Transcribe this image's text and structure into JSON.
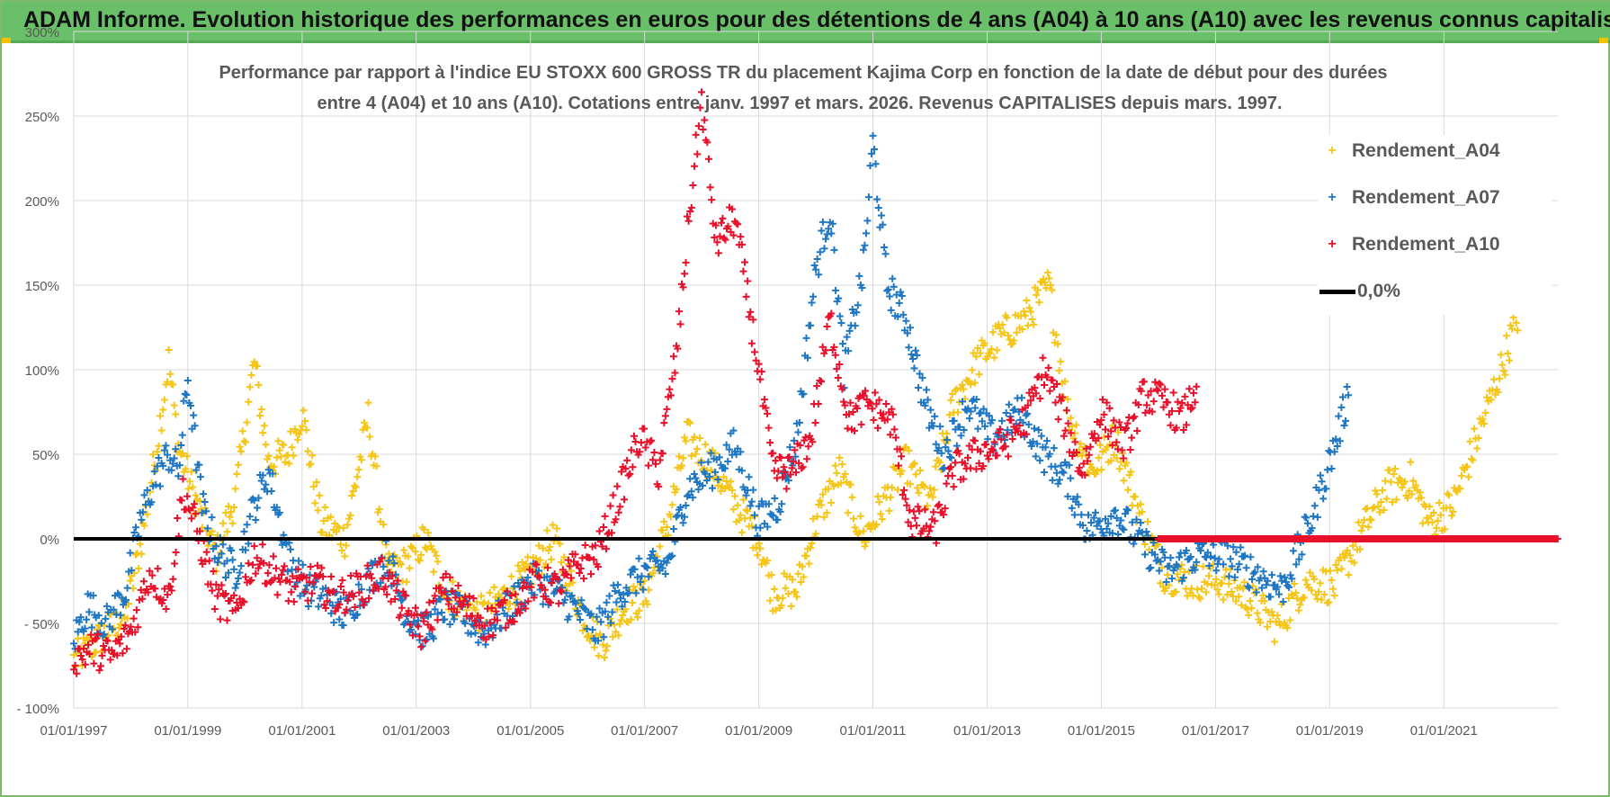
{
  "banner": {
    "title": "ADAM Informe. Evolution historique des performances en euros pour des détentions de 4 ans (A04) à 10 ans (A10) avec les revenus connus capitalisés"
  },
  "colors": {
    "banner": "#6abf69",
    "A04": "#f5c518",
    "A07": "#1f77c4",
    "A10": "#e8102a",
    "zero": "#000000",
    "grid": "#d9d9d9"
  },
  "chart_data": {
    "type": "scatter",
    "title_line1": "Performance par rapport à l'indice EU STOXX 600 GROSS TR  du placement Kajima Corp en fonction de la date de début pour des durées",
    "title_line2": "entre 4 (A04) et 10 ans (A10).  Cotations entre janv. 1997 et mars. 2026.  Revenus CAPITALISES depuis mars. 1997.",
    "xlabel": "",
    "ylabel": "",
    "x_range": [
      "1997-01-01",
      "2022-12-31"
    ],
    "ylim": [
      -100,
      300
    ],
    "y_ticks": [
      -100,
      -50,
      0,
      50,
      100,
      150,
      200,
      250,
      300
    ],
    "y_tick_labels": [
      "- 100%",
      "- 50%",
      "0%",
      "50%",
      "100%",
      "150%",
      "200%",
      "250%",
      "300%"
    ],
    "x_ticks": [
      "1997-01-01",
      "1999-01-01",
      "2001-01-01",
      "2003-01-01",
      "2005-01-01",
      "2007-01-01",
      "2009-01-01",
      "2011-01-01",
      "2013-01-01",
      "2015-01-01",
      "2017-01-01",
      "2019-01-01",
      "2021-01-01"
    ],
    "x_tick_labels": [
      "01/01/1997",
      "01/01/1999",
      "01/01/2001",
      "01/01/2003",
      "01/01/2005",
      "01/01/2007",
      "01/01/2009",
      "01/01/2011",
      "01/01/2013",
      "01/01/2015",
      "01/01/2017",
      "01/01/2019",
      "01/01/2021"
    ],
    "grid": true,
    "legend_position": "top-right",
    "series": [
      {
        "name": "Rendement_A04",
        "color": "#f5c518",
        "marker": "+",
        "points": [
          [
            "1997-01-01",
            -72
          ],
          [
            "1997-04-01",
            -65
          ],
          [
            "1997-08-01",
            -55
          ],
          [
            "1997-12-01",
            -45
          ],
          [
            "1998-03-01",
            -5
          ],
          [
            "1998-06-01",
            45
          ],
          [
            "1998-09-01",
            105
          ],
          [
            "1998-11-01",
            55
          ],
          [
            "1999-03-01",
            20
          ],
          [
            "1999-07-01",
            -10
          ],
          [
            "1999-11-01",
            25
          ],
          [
            "2000-03-01",
            105
          ],
          [
            "2000-06-01",
            45
          ],
          [
            "2000-10-01",
            50
          ],
          [
            "2001-01-01",
            75
          ],
          [
            "2001-05-01",
            10
          ],
          [
            "2001-10-01",
            0
          ],
          [
            "2002-03-01",
            72
          ],
          [
            "2002-07-01",
            -20
          ],
          [
            "2002-11-01",
            -15
          ],
          [
            "2003-03-01",
            0
          ],
          [
            "2003-07-01",
            -30
          ],
          [
            "2003-11-01",
            -40
          ],
          [
            "2004-03-01",
            -45
          ],
          [
            "2004-09-01",
            -30
          ],
          [
            "2005-01-01",
            -20
          ],
          [
            "2005-06-01",
            0
          ],
          [
            "2005-12-01",
            -45
          ],
          [
            "2006-04-01",
            -62
          ],
          [
            "2006-09-01",
            -40
          ],
          [
            "2007-01-01",
            -35
          ],
          [
            "2007-06-01",
            10
          ],
          [
            "2007-10-01",
            60
          ],
          [
            "2008-03-01",
            45
          ],
          [
            "2008-08-01",
            20
          ],
          [
            "2009-01-01",
            0
          ],
          [
            "2009-04-01",
            -32
          ],
          [
            "2009-09-01",
            -30
          ],
          [
            "2010-01-01",
            10
          ],
          [
            "2010-06-01",
            40
          ],
          [
            "2010-11-01",
            0
          ],
          [
            "2011-03-01",
            20
          ],
          [
            "2011-08-01",
            45
          ],
          [
            "2012-01-01",
            20
          ],
          [
            "2012-06-01",
            80
          ],
          [
            "2012-11-01",
            105
          ],
          [
            "2013-04-01",
            120
          ],
          [
            "2013-09-01",
            130
          ],
          [
            "2014-02-01",
            150
          ],
          [
            "2014-06-01",
            75
          ],
          [
            "2014-11-01",
            40
          ],
          [
            "2015-04-01",
            60
          ],
          [
            "2015-09-01",
            15
          ],
          [
            "2016-02-01",
            -20
          ],
          [
            "2016-08-01",
            -25
          ],
          [
            "2017-02-01",
            -25
          ],
          [
            "2017-08-01",
            -35
          ],
          [
            "2018-02-01",
            -52
          ],
          [
            "2018-08-01",
            -25
          ],
          [
            "2019-02-01",
            -28
          ],
          [
            "2019-08-01",
            5
          ],
          [
            "2020-01-01",
            30
          ],
          [
            "2020-06-01",
            35
          ],
          [
            "2020-10-01",
            10
          ],
          [
            "2021-03-01",
            20
          ],
          [
            "2021-08-01",
            60
          ],
          [
            "2022-01-01",
            100
          ],
          [
            "2022-06-01",
            145
          ]
        ]
      },
      {
        "name": "Rendement_A07",
        "color": "#1f77c4",
        "marker": "+",
        "points": [
          [
            "1997-01-01",
            -60
          ],
          [
            "1997-04-01",
            -40
          ],
          [
            "1997-08-01",
            -50
          ],
          [
            "1997-12-01",
            -30
          ],
          [
            "1998-03-01",
            10
          ],
          [
            "1998-06-01",
            35
          ],
          [
            "1998-09-01",
            50
          ],
          [
            "1998-11-01",
            40
          ],
          [
            "1999-01-01",
            95
          ],
          [
            "1999-04-01",
            20
          ],
          [
            "1999-07-01",
            -5
          ],
          [
            "1999-11-01",
            -20
          ],
          [
            "2000-03-01",
            20
          ],
          [
            "2000-06-01",
            40
          ],
          [
            "2000-10-01",
            -10
          ],
          [
            "2001-02-01",
            -30
          ],
          [
            "2001-06-01",
            -35
          ],
          [
            "2001-10-01",
            -45
          ],
          [
            "2002-03-01",
            -25
          ],
          [
            "2002-07-01",
            -10
          ],
          [
            "2002-11-01",
            -45
          ],
          [
            "2003-03-01",
            -55
          ],
          [
            "2003-07-01",
            -40
          ],
          [
            "2003-11-01",
            -45
          ],
          [
            "2004-03-01",
            -55
          ],
          [
            "2004-09-01",
            -40
          ],
          [
            "2005-01-01",
            -25
          ],
          [
            "2005-06-01",
            -30
          ],
          [
            "2005-10-01",
            -40
          ],
          [
            "2006-03-01",
            -55
          ],
          [
            "2006-08-01",
            -30
          ],
          [
            "2007-01-01",
            -20
          ],
          [
            "2007-06-01",
            -15
          ],
          [
            "2007-10-01",
            30
          ],
          [
            "2008-03-01",
            40
          ],
          [
            "2008-08-01",
            55
          ],
          [
            "2009-01-01",
            10
          ],
          [
            "2009-05-01",
            20
          ],
          [
            "2009-09-01",
            60
          ],
          [
            "2010-01-01",
            160
          ],
          [
            "2010-04-01",
            195
          ],
          [
            "2010-07-01",
            100
          ],
          [
            "2010-11-01",
            160
          ],
          [
            "2011-01-01",
            235
          ],
          [
            "2011-04-01",
            150
          ],
          [
            "2011-08-01",
            130
          ],
          [
            "2011-12-01",
            80
          ],
          [
            "2012-04-01",
            50
          ],
          [
            "2012-09-01",
            80
          ],
          [
            "2013-02-01",
            60
          ],
          [
            "2013-08-01",
            75
          ],
          [
            "2014-01-01",
            50
          ],
          [
            "2014-06-01",
            35
          ],
          [
            "2014-10-01",
            5
          ],
          [
            "2015-04-01",
            15
          ],
          [
            "2015-09-01",
            0
          ],
          [
            "2016-03-01",
            -20
          ],
          [
            "2016-09-01",
            -10
          ],
          [
            "2017-03-01",
            -10
          ],
          [
            "2017-09-01",
            -20
          ],
          [
            "2018-03-01",
            -30
          ],
          [
            "2018-09-01",
            10
          ],
          [
            "2019-02-01",
            55
          ],
          [
            "2019-05-01",
            85
          ]
        ]
      },
      {
        "name": "Rendement_A10",
        "color": "#e8102a",
        "marker": "+",
        "points": [
          [
            "1997-01-01",
            -70
          ],
          [
            "1997-05-01",
            -65
          ],
          [
            "1997-09-01",
            -70
          ],
          [
            "1998-01-01",
            -55
          ],
          [
            "1998-05-01",
            -20
          ],
          [
            "1998-09-01",
            -35
          ],
          [
            "1998-12-01",
            30
          ],
          [
            "1999-03-01",
            5
          ],
          [
            "1999-07-01",
            -35
          ],
          [
            "1999-11-01",
            -45
          ],
          [
            "2000-03-01",
            -10
          ],
          [
            "2000-07-01",
            -20
          ],
          [
            "2000-11-01",
            -30
          ],
          [
            "2001-04-01",
            -25
          ],
          [
            "2001-08-01",
            -35
          ],
          [
            "2002-01-01",
            -30
          ],
          [
            "2002-06-01",
            -20
          ],
          [
            "2002-10-01",
            -40
          ],
          [
            "2003-02-01",
            -55
          ],
          [
            "2003-07-01",
            -30
          ],
          [
            "2003-11-01",
            -40
          ],
          [
            "2004-04-01",
            -50
          ],
          [
            "2004-09-01",
            -40
          ],
          [
            "2005-02-01",
            -25
          ],
          [
            "2005-07-01",
            -30
          ],
          [
            "2005-11-01",
            -15
          ],
          [
            "2006-03-01",
            -10
          ],
          [
            "2006-07-01",
            20
          ],
          [
            "2006-12-01",
            60
          ],
          [
            "2007-04-01",
            40
          ],
          [
            "2007-08-01",
            115
          ],
          [
            "2007-10-01",
            180
          ],
          [
            "2008-01-01",
            260
          ],
          [
            "2008-04-01",
            175
          ],
          [
            "2008-08-01",
            190
          ],
          [
            "2009-01-01",
            100
          ],
          [
            "2009-04-01",
            40
          ],
          [
            "2009-08-01",
            40
          ],
          [
            "2009-12-01",
            60
          ],
          [
            "2010-04-01",
            130
          ],
          [
            "2010-08-01",
            70
          ],
          [
            "2010-12-01",
            80
          ],
          [
            "2011-05-01",
            70
          ],
          [
            "2011-09-01",
            10
          ],
          [
            "2012-02-01",
            5
          ],
          [
            "2012-06-01",
            40
          ],
          [
            "2012-11-01",
            50
          ],
          [
            "2013-04-01",
            55
          ],
          [
            "2013-09-01",
            70
          ],
          [
            "2014-01-01",
            100
          ],
          [
            "2014-04-01",
            80
          ],
          [
            "2014-09-01",
            40
          ],
          [
            "2015-01-01",
            75
          ],
          [
            "2015-06-01",
            55
          ],
          [
            "2015-10-01",
            85
          ],
          [
            "2016-03-01",
            80
          ],
          [
            "2016-06-01",
            70
          ],
          [
            "2016-09-01",
            90
          ]
        ]
      },
      {
        "name": "0,0%",
        "color": "#000000",
        "marker": "line",
        "points": [
          [
            "1997-01-01",
            0
          ],
          [
            "2016-01-01",
            0
          ]
        ]
      }
    ],
    "A10_flat_segment": {
      "from": "2016-01-01",
      "to": "2022-12-31",
      "value": 0
    }
  }
}
